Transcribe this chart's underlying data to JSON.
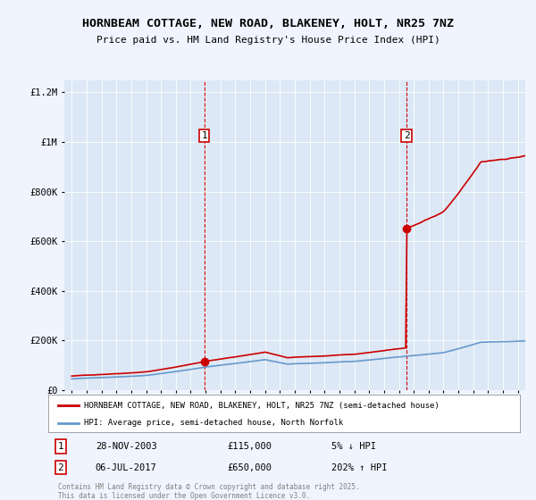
{
  "title": "HORNBEAM COTTAGE, NEW ROAD, BLAKENEY, HOLT, NR25 7NZ",
  "subtitle": "Price paid vs. HM Land Registry's House Price Index (HPI)",
  "background_color": "#f0f4ff",
  "plot_bg_color": "#dce8f5",
  "sale1_date_num": 2003.91,
  "sale1_price": 115000,
  "sale2_date_num": 2017.51,
  "sale2_price": 650000,
  "ylim": [
    0,
    1250000
  ],
  "xlim": [
    1994.5,
    2025.5
  ],
  "yticks": [
    0,
    200000,
    400000,
    600000,
    800000,
    1000000,
    1200000
  ],
  "ytick_labels": [
    "£0",
    "£200K",
    "£400K",
    "£600K",
    "£800K",
    "£1M",
    "£1.2M"
  ],
  "xticks": [
    1995,
    1996,
    1997,
    1998,
    1999,
    2000,
    2001,
    2002,
    2003,
    2004,
    2005,
    2006,
    2007,
    2008,
    2009,
    2010,
    2011,
    2012,
    2013,
    2014,
    2015,
    2016,
    2017,
    2018,
    2019,
    2020,
    2021,
    2022,
    2023,
    2024,
    2025
  ],
  "hpi_color": "#6699cc",
  "sale_color": "#cc0000",
  "dashed_line_color": "#cc0000",
  "legend_entries": [
    "HORNBEAM COTTAGE, NEW ROAD, BLAKENEY, HOLT, NR25 7NZ (semi-detached house)",
    "HPI: Average price, semi-detached house, North Norfolk"
  ],
  "annotation1_label": "1",
  "annotation1_date": "28-NOV-2003",
  "annotation1_price": "£115,000",
  "annotation1_pct": "5% ↓ HPI",
  "annotation2_label": "2",
  "annotation2_date": "06-JUL-2017",
  "annotation2_price": "£650,000",
  "annotation2_pct": "202% ↑ HPI",
  "footer": "Contains HM Land Registry data © Crown copyright and database right 2025.\nThis data is licensed under the Open Government Licence v3.0."
}
